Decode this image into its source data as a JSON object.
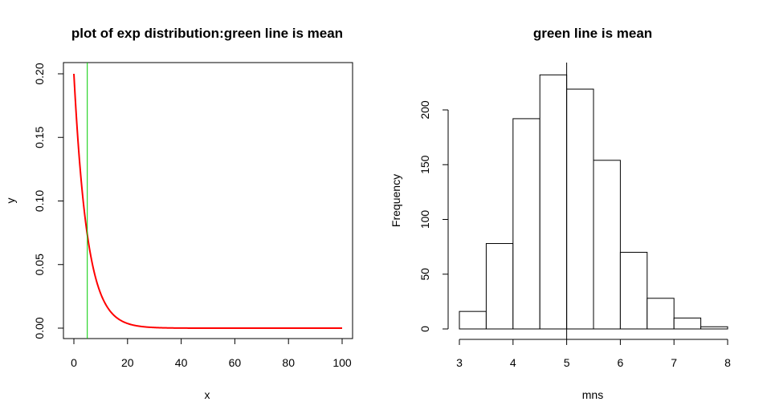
{
  "colors": {
    "curve": "#ff0000",
    "mean_line": "#00cc00",
    "axis": "#000000",
    "bar_fill": "#ffffff",
    "bar_stroke": "#000000"
  },
  "chart_data": [
    {
      "type": "line",
      "title": "plot of exp distribution:green line is mean",
      "xlabel": "x",
      "ylabel": "y",
      "xlim": [
        0,
        100
      ],
      "ylim": [
        0,
        0.2
      ],
      "x_ticks": [
        "0",
        "20",
        "40",
        "60",
        "80",
        "100"
      ],
      "y_ticks": [
        "0.00",
        "0.05",
        "0.10",
        "0.15",
        "0.20"
      ],
      "rate": 0.2,
      "mean_line_x": 5,
      "box": true,
      "series": [
        {
          "color": "#ff0000",
          "x": [
            0,
            2,
            4,
            6,
            8,
            10,
            12,
            15,
            20,
            25,
            30,
            35,
            40,
            50,
            60,
            70,
            80,
            90,
            100
          ],
          "y": [
            0.2,
            0.134,
            0.0899,
            0.0602,
            0.0404,
            0.0271,
            0.0181,
            0.00996,
            0.00366,
            0.00135,
            0.000496,
            0.000182,
            6.71e-05,
            9.1e-06,
            1.2e-06,
            0,
            0,
            0,
            0
          ]
        }
      ]
    },
    {
      "type": "bar",
      "title": "green line is mean",
      "xlabel": "mns",
      "ylabel": "Frequency",
      "xlim": [
        3,
        8
      ],
      "ylim": [
        0,
        200
      ],
      "x_ticks": [
        "3",
        "4",
        "5",
        "6",
        "7",
        "8"
      ],
      "y_ticks": [
        "0",
        "50",
        "100",
        "150",
        "200"
      ],
      "bin_edges": [
        3,
        3.5,
        4,
        4.5,
        5,
        5.5,
        6,
        6.5,
        7,
        7.5,
        8
      ],
      "values": [
        16,
        78,
        192,
        232,
        219,
        154,
        70,
        28,
        10,
        2
      ],
      "mean_line_x": 5
    }
  ]
}
